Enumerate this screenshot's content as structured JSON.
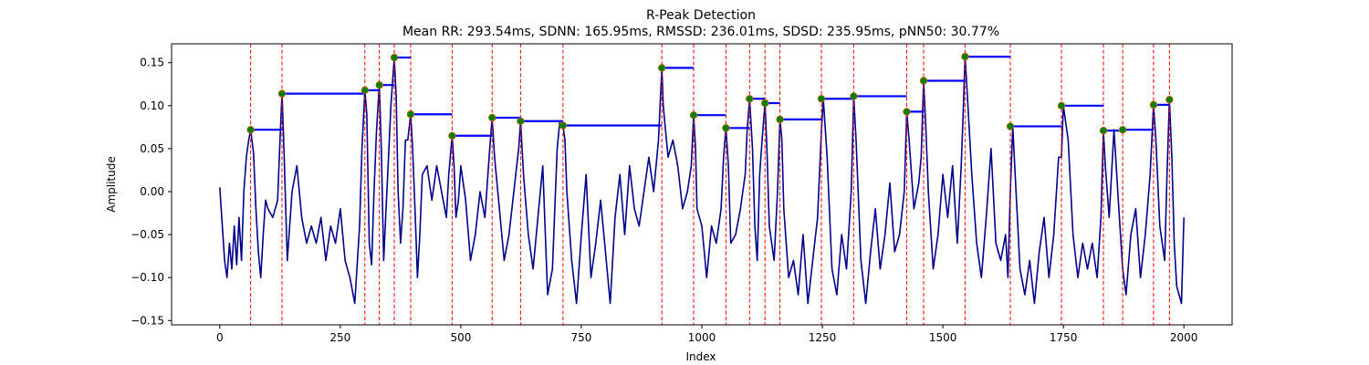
{
  "chart_data": {
    "type": "line",
    "title": "R-Peak Detection",
    "subtitle": "Mean RR: 293.54ms, SDNN: 165.95ms, RMSSD: 236.01ms, SDSD: 235.95ms, pNN50: 30.77%",
    "xlabel": "Index",
    "ylabel": "Amplitude",
    "xlim": [
      -100,
      2100
    ],
    "ylim": [
      -0.155,
      0.172
    ],
    "xticks": [
      0,
      250,
      500,
      750,
      1000,
      1250,
      1500,
      1750,
      2000
    ],
    "yticks": [
      -0.15,
      -0.1,
      -0.05,
      0.0,
      0.05,
      0.1,
      0.15
    ],
    "xtick_labels": [
      "0",
      "250",
      "500",
      "750",
      "1000",
      "1250",
      "1500",
      "1750",
      "2000"
    ],
    "ytick_labels": [
      "−0.15",
      "−0.10",
      "−0.05",
      "0.00",
      "0.05",
      "0.10",
      "0.15"
    ],
    "grid": false,
    "colors": {
      "signal": "#00008b",
      "peak_marker_fill": "#008000",
      "peak_marker_edge": "#cc6600",
      "peak_line": "#ff0000",
      "rr_segment": "#0000ff"
    },
    "signal": {
      "x": [
        0,
        10,
        15,
        20,
        25,
        30,
        35,
        40,
        45,
        50,
        55,
        60,
        64,
        70,
        75,
        80,
        85,
        90,
        95,
        100,
        110,
        120,
        125,
        129,
        133,
        140,
        150,
        160,
        170,
        180,
        190,
        200,
        210,
        220,
        230,
        240,
        250,
        260,
        270,
        280,
        290,
        295,
        301,
        305,
        310,
        315,
        320,
        325,
        331,
        335,
        340,
        345,
        350,
        355,
        362,
        366,
        370,
        375,
        380,
        385,
        390,
        396,
        400,
        405,
        410,
        415,
        420,
        430,
        440,
        450,
        460,
        470,
        475,
        482,
        486,
        490,
        495,
        500,
        510,
        520,
        530,
        540,
        550,
        560,
        565,
        570,
        580,
        590,
        600,
        610,
        620,
        624,
        630,
        640,
        650,
        660,
        670,
        680,
        690,
        700,
        705,
        712,
        716,
        720,
        730,
        740,
        750,
        760,
        770,
        780,
        790,
        800,
        810,
        820,
        830,
        840,
        850,
        860,
        870,
        880,
        890,
        900,
        910,
        917,
        920,
        930,
        940,
        950,
        960,
        970,
        978,
        983,
        987,
        990,
        1000,
        1010,
        1020,
        1030,
        1040,
        1045,
        1050,
        1055,
        1060,
        1070,
        1080,
        1090,
        1094,
        1099,
        1105,
        1110,
        1115,
        1120,
        1125,
        1131,
        1135,
        1140,
        1150,
        1157,
        1162,
        1166,
        1170,
        1180,
        1190,
        1200,
        1210,
        1220,
        1230,
        1240,
        1248,
        1252,
        1260,
        1270,
        1280,
        1290,
        1300,
        1310,
        1315,
        1320,
        1330,
        1340,
        1350,
        1360,
        1370,
        1380,
        1390,
        1400,
        1410,
        1420,
        1425,
        1430,
        1440,
        1450,
        1455,
        1460,
        1465,
        1470,
        1480,
        1490,
        1500,
        1510,
        1520,
        1530,
        1538,
        1542,
        1546,
        1550,
        1560,
        1570,
        1580,
        1590,
        1600,
        1610,
        1620,
        1630,
        1635,
        1640,
        1645,
        1650,
        1660,
        1670,
        1680,
        1690,
        1700,
        1710,
        1720,
        1730,
        1740,
        1746,
        1750,
        1760,
        1770,
        1780,
        1790,
        1800,
        1810,
        1820,
        1828,
        1833,
        1837,
        1845,
        1855,
        1865,
        1873,
        1880,
        1890,
        1900,
        1910,
        1920,
        1930,
        1937,
        1942,
        1950,
        1960,
        1965,
        1970,
        1975,
        1980,
        1985,
        1990,
        1995,
        2000
      ],
      "y": [
        0.005,
        -0.08,
        -0.1,
        -0.06,
        -0.09,
        -0.04,
        -0.085,
        -0.03,
        -0.08,
        0.0,
        0.04,
        0.06,
        0.072,
        0.045,
        -0.02,
        -0.07,
        -0.1,
        -0.05,
        -0.01,
        -0.02,
        -0.03,
        -0.01,
        0.06,
        0.114,
        0.05,
        -0.08,
        0.0,
        0.03,
        -0.03,
        -0.06,
        -0.04,
        -0.06,
        -0.03,
        -0.08,
        -0.04,
        -0.06,
        -0.02,
        -0.08,
        -0.1,
        -0.13,
        -0.04,
        0.05,
        0.118,
        0.09,
        -0.06,
        -0.085,
        0.0,
        0.07,
        0.124,
        0.05,
        -0.08,
        -0.02,
        0.04,
        0.1,
        0.156,
        0.11,
        0.0,
        -0.06,
        -0.02,
        0.06,
        0.06,
        0.09,
        0.05,
        -0.02,
        -0.1,
        -0.05,
        0.02,
        0.03,
        -0.01,
        0.03,
        0.0,
        -0.03,
        0.02,
        0.065,
        0.03,
        -0.03,
        -0.01,
        0.03,
        -0.01,
        -0.08,
        -0.05,
        0.0,
        -0.03,
        0.05,
        0.086,
        0.04,
        -0.02,
        -0.08,
        -0.05,
        0.0,
        0.05,
        0.082,
        0.02,
        -0.05,
        -0.09,
        -0.03,
        0.03,
        -0.12,
        -0.09,
        0.05,
        0.08,
        0.077,
        0.06,
        0.0,
        -0.08,
        -0.13,
        -0.05,
        0.02,
        -0.1,
        -0.06,
        -0.01,
        -0.07,
        -0.13,
        -0.03,
        0.02,
        -0.05,
        0.03,
        -0.02,
        -0.04,
        0.0,
        0.04,
        0.0,
        0.06,
        0.144,
        0.1,
        0.04,
        0.06,
        0.03,
        -0.02,
        0.0,
        0.03,
        0.089,
        0.05,
        -0.02,
        -0.04,
        -0.1,
        -0.04,
        -0.06,
        -0.02,
        0.04,
        0.074,
        0.03,
        -0.06,
        -0.05,
        -0.02,
        0.02,
        0.07,
        0.108,
        0.05,
        -0.04,
        -0.08,
        0.02,
        0.06,
        0.103,
        0.05,
        -0.04,
        -0.08,
        0.0,
        0.084,
        0.06,
        -0.02,
        -0.1,
        -0.08,
        -0.12,
        -0.05,
        -0.13,
        -0.08,
        -0.03,
        0.07,
        0.108,
        0.04,
        -0.09,
        -0.12,
        -0.05,
        -0.09,
        0.0,
        0.111,
        0.06,
        -0.08,
        -0.13,
        -0.07,
        -0.02,
        -0.09,
        -0.05,
        0.01,
        -0.07,
        -0.05,
        0.0,
        0.093,
        0.06,
        -0.02,
        0.01,
        0.04,
        0.129,
        0.07,
        0.0,
        -0.09,
        -0.05,
        0.02,
        -0.03,
        0.03,
        -0.06,
        0.03,
        0.09,
        0.157,
        0.12,
        0.02,
        -0.06,
        -0.1,
        -0.03,
        0.05,
        -0.06,
        -0.08,
        -0.05,
        -0.1,
        0.0,
        0.076,
        0.02,
        -0.09,
        -0.12,
        -0.08,
        -0.13,
        -0.07,
        -0.03,
        -0.1,
        -0.05,
        0.04,
        0.04,
        0.1,
        0.06,
        -0.05,
        -0.1,
        -0.06,
        -0.09,
        -0.06,
        -0.1,
        -0.03,
        0.071,
        0.03,
        -0.03,
        0.072,
        -0.02,
        -0.09,
        -0.12,
        -0.05,
        -0.02,
        -0.1,
        -0.05,
        0.02,
        0.101,
        0.06,
        -0.04,
        -0.08,
        0.02,
        0.107,
        0.04,
        -0.06,
        -0.11,
        -0.12,
        -0.13,
        -0.03
      ]
    },
    "peaks": {
      "x": [
        64,
        129,
        301,
        331,
        362,
        396,
        482,
        565,
        624,
        712,
        917,
        983,
        1050,
        1099,
        1131,
        1162,
        1248,
        1315,
        1425,
        1460,
        1546,
        1640,
        1746,
        1833,
        1873,
        1937,
        1970
      ],
      "y": [
        0.072,
        0.114,
        0.118,
        0.124,
        0.156,
        0.09,
        0.065,
        0.086,
        0.082,
        0.077,
        0.144,
        0.089,
        0.074,
        0.108,
        0.103,
        0.084,
        0.108,
        0.111,
        0.093,
        0.129,
        0.157,
        0.076,
        0.1,
        0.071,
        0.072,
        0.101,
        0.107
      ]
    },
    "rr_segments": [
      {
        "x": [
          64,
          129
        ],
        "y": 0.072
      },
      {
        "x": [
          129,
          301
        ],
        "y": 0.114
      },
      {
        "x": [
          301,
          331
        ],
        "y": 0.118
      },
      {
        "x": [
          331,
          362
        ],
        "y": 0.124
      },
      {
        "x": [
          362,
          396
        ],
        "y": 0.156
      },
      {
        "x": [
          396,
          482
        ],
        "y": 0.09
      },
      {
        "x": [
          482,
          565
        ],
        "y": 0.065
      },
      {
        "x": [
          565,
          624
        ],
        "y": 0.086
      },
      {
        "x": [
          624,
          712
        ],
        "y": 0.082
      },
      {
        "x": [
          712,
          917
        ],
        "y": 0.077
      },
      {
        "x": [
          917,
          983
        ],
        "y": 0.144
      },
      {
        "x": [
          983,
          1050
        ],
        "y": 0.089
      },
      {
        "x": [
          1050,
          1099
        ],
        "y": 0.074
      },
      {
        "x": [
          1099,
          1131
        ],
        "y": 0.108
      },
      {
        "x": [
          1131,
          1162
        ],
        "y": 0.103
      },
      {
        "x": [
          1162,
          1248
        ],
        "y": 0.084
      },
      {
        "x": [
          1248,
          1315
        ],
        "y": 0.108
      },
      {
        "x": [
          1315,
          1425
        ],
        "y": 0.111
      },
      {
        "x": [
          1425,
          1460
        ],
        "y": 0.093
      },
      {
        "x": [
          1460,
          1546
        ],
        "y": 0.129
      },
      {
        "x": [
          1546,
          1640
        ],
        "y": 0.157
      },
      {
        "x": [
          1640,
          1746
        ],
        "y": 0.076
      },
      {
        "x": [
          1746,
          1833
        ],
        "y": 0.1
      },
      {
        "x": [
          1833,
          1873
        ],
        "y": 0.071
      },
      {
        "x": [
          1873,
          1937
        ],
        "y": 0.072
      },
      {
        "x": [
          1937,
          1970
        ],
        "y": 0.101
      }
    ]
  }
}
